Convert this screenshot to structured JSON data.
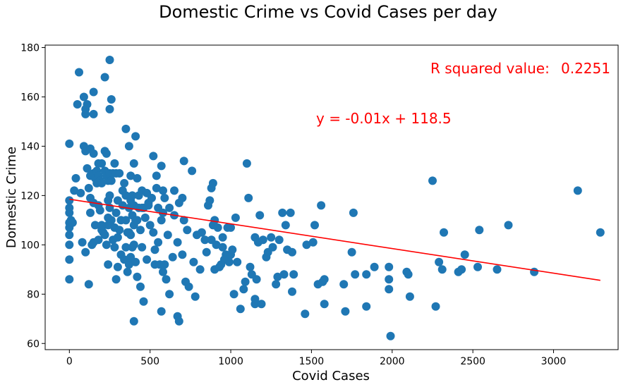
{
  "chart_data": {
    "type": "scatter",
    "title": "Domestic Crime vs Covid Cases per day",
    "xlabel": "Covid Cases",
    "ylabel": "Domestic Crime",
    "xlim": [
      -150,
      3400
    ],
    "ylim": [
      57.5,
      181
    ],
    "x_ticks": [
      0,
      500,
      1000,
      1500,
      2000,
      2500,
      3000
    ],
    "y_ticks": [
      60,
      80,
      100,
      120,
      140,
      160,
      180
    ],
    "grid": false,
    "point_color": "#1f77b4",
    "line_color": "#ff0000",
    "annotation_color": "#ff0000",
    "regression": {
      "slope": -0.01,
      "intercept": 118.5,
      "x_range": [
        0,
        3290
      ],
      "equation_text": "y = -0.01x + 118.5",
      "r_squared_label": "R squared value:",
      "r_squared_value": "0.2251"
    },
    "points": [
      [
        0,
        141
      ],
      [
        0,
        118
      ],
      [
        0,
        115
      ],
      [
        0,
        113
      ],
      [
        0,
        109
      ],
      [
        0,
        107
      ],
      [
        0,
        104
      ],
      [
        0,
        100
      ],
      [
        0,
        94
      ],
      [
        0,
        86
      ],
      [
        10,
        110
      ],
      [
        20,
        109
      ],
      [
        30,
        122
      ],
      [
        40,
        127
      ],
      [
        50,
        157
      ],
      [
        60,
        170
      ],
      [
        70,
        121
      ],
      [
        80,
        101
      ],
      [
        90,
        140
      ],
      [
        90,
        160
      ],
      [
        100,
        138
      ],
      [
        100,
        153
      ],
      [
        100,
        155
      ],
      [
        100,
        97
      ],
      [
        110,
        157
      ],
      [
        110,
        131
      ],
      [
        120,
        123
      ],
      [
        120,
        84
      ],
      [
        130,
        119
      ],
      [
        130,
        113
      ],
      [
        130,
        128
      ],
      [
        130,
        139
      ],
      [
        140,
        100
      ],
      [
        150,
        162
      ],
      [
        150,
        153
      ],
      [
        150,
        137
      ],
      [
        150,
        129
      ],
      [
        150,
        117
      ],
      [
        150,
        101
      ],
      [
        160,
        108
      ],
      [
        160,
        127
      ],
      [
        170,
        125
      ],
      [
        170,
        130
      ],
      [
        180,
        133
      ],
      [
        180,
        128
      ],
      [
        180,
        116
      ],
      [
        180,
        102
      ],
      [
        190,
        126
      ],
      [
        190,
        114
      ],
      [
        200,
        133
      ],
      [
        200,
        125
      ],
      [
        200,
        108
      ],
      [
        200,
        106
      ],
      [
        210,
        105
      ],
      [
        220,
        168
      ],
      [
        220,
        138
      ],
      [
        220,
        130
      ],
      [
        220,
        104
      ],
      [
        230,
        137
      ],
      [
        230,
        128
      ],
      [
        230,
        100
      ],
      [
        240,
        126
      ],
      [
        240,
        118
      ],
      [
        240,
        111
      ],
      [
        240,
        108
      ],
      [
        240,
        92
      ],
      [
        250,
        175
      ],
      [
        250,
        155
      ],
      [
        250,
        129
      ],
      [
        250,
        120
      ],
      [
        250,
        115
      ],
      [
        260,
        159
      ],
      [
        260,
        126
      ],
      [
        260,
        110
      ],
      [
        270,
        129
      ],
      [
        270,
        102
      ],
      [
        280,
        133
      ],
      [
        280,
        107
      ],
      [
        280,
        99
      ],
      [
        290,
        129
      ],
      [
        290,
        113
      ],
      [
        290,
        86
      ],
      [
        300,
        118
      ],
      [
        300,
        103
      ],
      [
        300,
        91
      ],
      [
        310,
        129
      ],
      [
        310,
        106
      ],
      [
        320,
        96
      ],
      [
        320,
        110
      ],
      [
        330,
        122
      ],
      [
        330,
        116
      ],
      [
        340,
        125
      ],
      [
        340,
        94
      ],
      [
        350,
        147
      ],
      [
        350,
        120
      ],
      [
        350,
        110
      ],
      [
        350,
        99
      ],
      [
        360,
        105
      ],
      [
        360,
        89
      ],
      [
        370,
        140
      ],
      [
        370,
        115
      ],
      [
        370,
        105
      ],
      [
        370,
        92
      ],
      [
        380,
        128
      ],
      [
        380,
        118
      ],
      [
        380,
        104
      ],
      [
        380,
        95
      ],
      [
        390,
        120
      ],
      [
        390,
        112
      ],
      [
        390,
        99
      ],
      [
        400,
        133
      ],
      [
        400,
        116
      ],
      [
        400,
        108
      ],
      [
        400,
        100
      ],
      [
        400,
        69
      ],
      [
        410,
        144
      ],
      [
        410,
        110
      ],
      [
        410,
        93
      ],
      [
        420,
        127
      ],
      [
        420,
        110
      ],
      [
        420,
        87
      ],
      [
        430,
        120
      ],
      [
        430,
        115
      ],
      [
        440,
        83
      ],
      [
        440,
        106
      ],
      [
        450,
        122
      ],
      [
        450,
        115
      ],
      [
        450,
        99
      ],
      [
        460,
        77
      ],
      [
        460,
        115
      ],
      [
        470,
        111
      ],
      [
        480,
        121
      ],
      [
        480,
        94
      ],
      [
        490,
        117
      ],
      [
        490,
        116
      ],
      [
        500,
        108
      ],
      [
        510,
        119
      ],
      [
        520,
        136
      ],
      [
        520,
        105
      ],
      [
        530,
        98
      ],
      [
        530,
        92
      ],
      [
        540,
        123
      ],
      [
        540,
        128
      ],
      [
        550,
        101
      ],
      [
        550,
        115
      ],
      [
        560,
        92
      ],
      [
        570,
        132
      ],
      [
        570,
        110
      ],
      [
        570,
        73
      ],
      [
        580,
        122
      ],
      [
        580,
        113
      ],
      [
        580,
        89
      ],
      [
        590,
        119
      ],
      [
        590,
        92
      ],
      [
        600,
        86
      ],
      [
        610,
        104
      ],
      [
        620,
        115
      ],
      [
        620,
        80
      ],
      [
        640,
        95
      ],
      [
        650,
        122
      ],
      [
        650,
        112
      ],
      [
        670,
        101
      ],
      [
        670,
        71
      ],
      [
        680,
        69
      ],
      [
        680,
        117
      ],
      [
        700,
        119
      ],
      [
        700,
        96
      ],
      [
        710,
        134
      ],
      [
        710,
        110
      ],
      [
        720,
        85
      ],
      [
        730,
        106
      ],
      [
        740,
        83
      ],
      [
        760,
        130
      ],
      [
        770,
        93
      ],
      [
        780,
        79
      ],
      [
        790,
        104
      ],
      [
        810,
        90
      ],
      [
        820,
        105
      ],
      [
        840,
        102
      ],
      [
        850,
        97
      ],
      [
        860,
        116
      ],
      [
        870,
        118
      ],
      [
        880,
        102
      ],
      [
        880,
        123
      ],
      [
        890,
        125
      ],
      [
        890,
        108
      ],
      [
        900,
        90
      ],
      [
        900,
        110
      ],
      [
        910,
        100
      ],
      [
        920,
        107
      ],
      [
        930,
        91
      ],
      [
        940,
        92
      ],
      [
        950,
        103
      ],
      [
        950,
        99
      ],
      [
        960,
        94
      ],
      [
        970,
        96
      ],
      [
        980,
        107
      ],
      [
        990,
        93
      ],
      [
        1000,
        96
      ],
      [
        1000,
        107
      ],
      [
        1010,
        98
      ],
      [
        1020,
        80
      ],
      [
        1030,
        111
      ],
      [
        1040,
        93
      ],
      [
        1060,
        74
      ],
      [
        1080,
        82
      ],
      [
        1090,
        85
      ],
      [
        1100,
        133
      ],
      [
        1110,
        119
      ],
      [
        1120,
        91
      ],
      [
        1130,
        88
      ],
      [
        1150,
        78
      ],
      [
        1150,
        76
      ],
      [
        1150,
        103
      ],
      [
        1160,
        86
      ],
      [
        1170,
        101
      ],
      [
        1180,
        112
      ],
      [
        1190,
        76
      ],
      [
        1200,
        102
      ],
      [
        1220,
        95
      ],
      [
        1230,
        97
      ],
      [
        1250,
        103
      ],
      [
        1260,
        99
      ],
      [
        1280,
        84
      ],
      [
        1290,
        87
      ],
      [
        1300,
        102
      ],
      [
        1320,
        113
      ],
      [
        1330,
        88
      ],
      [
        1340,
        108
      ],
      [
        1350,
        98
      ],
      [
        1370,
        113
      ],
      [
        1380,
        97
      ],
      [
        1390,
        88
      ],
      [
        1380,
        81
      ],
      [
        1460,
        72
      ],
      [
        1470,
        100
      ],
      [
        1510,
        101
      ],
      [
        1520,
        108
      ],
      [
        1540,
        84
      ],
      [
        1560,
        116
      ],
      [
        1570,
        85
      ],
      [
        1580,
        76
      ],
      [
        1580,
        86
      ],
      [
        1700,
        84
      ],
      [
        1710,
        73
      ],
      [
        1750,
        97
      ],
      [
        1760,
        113
      ],
      [
        1770,
        88
      ],
      [
        1840,
        88
      ],
      [
        1840,
        75
      ],
      [
        1890,
        91
      ],
      [
        1980,
        91
      ],
      [
        1980,
        82
      ],
      [
        1980,
        86
      ],
      [
        1990,
        63
      ],
      [
        2090,
        89
      ],
      [
        2100,
        88
      ],
      [
        2110,
        79
      ],
      [
        2250,
        126
      ],
      [
        2270,
        75
      ],
      [
        2290,
        93
      ],
      [
        2310,
        90
      ],
      [
        2320,
        105
      ],
      [
        2410,
        89
      ],
      [
        2430,
        90
      ],
      [
        2450,
        96
      ],
      [
        2530,
        91
      ],
      [
        2540,
        106
      ],
      [
        2650,
        90
      ],
      [
        2720,
        108
      ],
      [
        2880,
        89
      ],
      [
        3150,
        122
      ],
      [
        3290,
        105
      ]
    ]
  }
}
